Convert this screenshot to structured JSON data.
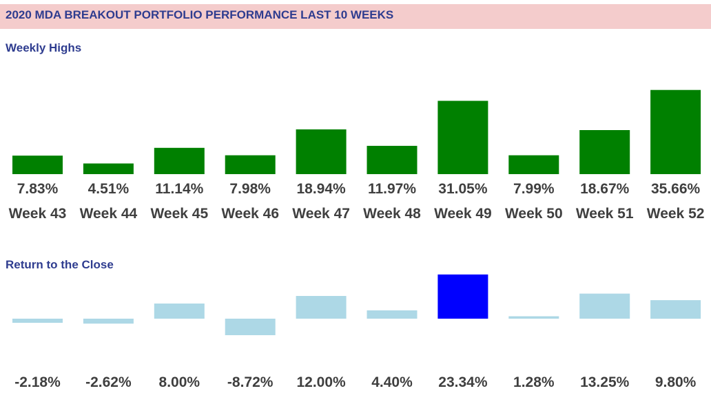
{
  "header": {
    "title": "2020 MDA BREAKOUT PORTFOLIO PERFORMANCE LAST 10 WEEKS"
  },
  "sections": {
    "highs_title": "Weekly Highs",
    "close_title": "Return to the Close"
  },
  "colors": {
    "banner_bg": "#f4cccc",
    "title_text": "#2e3c8f",
    "highs_bar": "#008000",
    "close_bar": "#add8e6",
    "close_highlight": "#0000ff",
    "label_text": "#3f3f3f"
  },
  "chart_data": [
    {
      "type": "bar",
      "title": "Weekly Highs",
      "categories": [
        "Week 43",
        "Week 44",
        "Week 45",
        "Week 46",
        "Week 47",
        "Week 48",
        "Week 49",
        "Week 50",
        "Week 51",
        "Week 52"
      ],
      "values": [
        7.83,
        4.51,
        11.14,
        7.98,
        18.94,
        11.97,
        31.05,
        7.99,
        18.67,
        35.66
      ],
      "value_labels": [
        "7.83%",
        "4.51%",
        "11.14%",
        "7.98%",
        "18.94%",
        "11.97%",
        "31.05%",
        "7.99%",
        "18.67%",
        "35.66%"
      ],
      "unit": "%",
      "grid": false,
      "legend": "none"
    },
    {
      "type": "bar",
      "title": "Return to the Close",
      "categories": [
        "Week 43",
        "Week 44",
        "Week 45",
        "Week 46",
        "Week 47",
        "Week 48",
        "Week 49",
        "Week 50",
        "Week 51",
        "Week 52"
      ],
      "values": [
        -2.18,
        -2.62,
        8.0,
        -8.72,
        12.0,
        4.4,
        23.34,
        1.28,
        13.25,
        9.8
      ],
      "value_labels": [
        "-2.18%",
        "-2.62%",
        "8.00%",
        "-8.72%",
        "12.00%",
        "4.40%",
        "23.34%",
        "1.28%",
        "13.25%",
        "9.80%"
      ],
      "highlight_index": 6,
      "unit": "%",
      "grid": false,
      "legend": "none"
    }
  ]
}
